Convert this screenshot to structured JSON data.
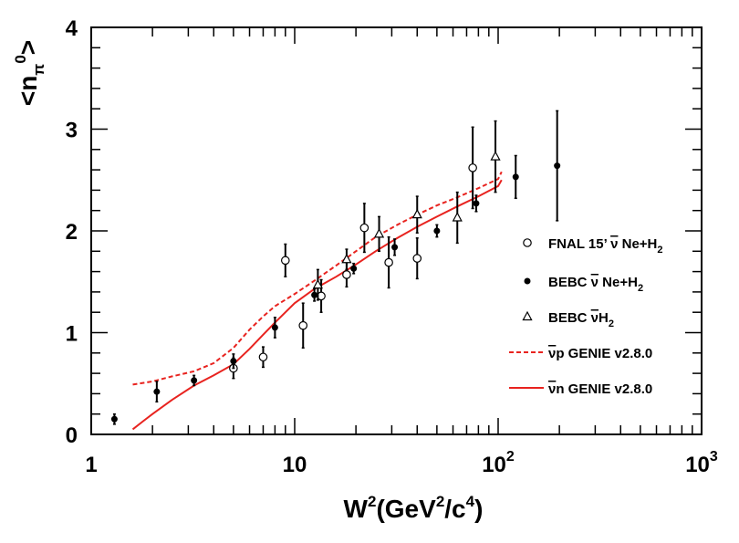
{
  "chart_data": {
    "type": "scatter",
    "x_scale": "log",
    "xlim": [
      1,
      1000
    ],
    "ylim": [
      0,
      4
    ],
    "x_tick_labels": [
      {
        "value": 1,
        "base": "1",
        "exp": ""
      },
      {
        "value": 10,
        "base": "10",
        "exp": ""
      },
      {
        "value": 100,
        "base": "10",
        "exp": "2"
      },
      {
        "value": 1000,
        "base": "10",
        "exp": "3"
      }
    ],
    "y_ticks": [
      0,
      1,
      2,
      3,
      4
    ],
    "y_tick_labels": [
      "0",
      "1",
      "2",
      "3",
      "4"
    ],
    "xlabel": {
      "a": "W",
      "a_sup": "2",
      "b": "(GeV",
      "b_sup": "2",
      "c": "/c",
      "c_sup": "4",
      "d": ")"
    },
    "ylabel": {
      "open": "<n",
      "sub": "π",
      "sup": "0",
      "close": ">"
    },
    "legend_position": "right",
    "series": [
      {
        "name": "FNAL 15’ ν̅ Ne+H₂",
        "legend": {
          "a": "FNAL 15’ ",
          "bar": "ν",
          "b": " Ne+H",
          "sub": "2"
        },
        "marker": "open-circle",
        "points": [
          {
            "x": 5.0,
            "y": 0.65,
            "err": 0.1
          },
          {
            "x": 7.0,
            "y": 0.76,
            "err": 0.1
          },
          {
            "x": 9.0,
            "y": 1.71,
            "err": 0.16
          },
          {
            "x": 11.0,
            "y": 1.07,
            "err": 0.22
          },
          {
            "x": 13.5,
            "y": 1.36,
            "err": 0.16
          },
          {
            "x": 18.0,
            "y": 1.57,
            "err": 0.12
          },
          {
            "x": 22.0,
            "y": 2.03,
            "err": 0.24
          },
          {
            "x": 29.0,
            "y": 1.69,
            "err": 0.25
          },
          {
            "x": 40.0,
            "y": 1.73,
            "err": 0.2
          },
          {
            "x": 75.0,
            "y": 2.62,
            "err": 0.4
          }
        ]
      },
      {
        "name": "BEBC ν̅ Ne+H₂",
        "legend": {
          "a": "BEBC ",
          "bar": "ν",
          "b": " Ne+H",
          "sub": "2"
        },
        "marker": "filled-circle",
        "points": [
          {
            "x": 1.3,
            "y": 0.15,
            "err": 0.05
          },
          {
            "x": 2.1,
            "y": 0.42,
            "err": 0.1
          },
          {
            "x": 3.2,
            "y": 0.53,
            "err": 0.05
          },
          {
            "x": 5.0,
            "y": 0.72,
            "err": 0.07
          },
          {
            "x": 8.0,
            "y": 1.05,
            "err": 0.1
          },
          {
            "x": 12.5,
            "y": 1.37,
            "err": 0.06
          },
          {
            "x": 19.5,
            "y": 1.63,
            "err": 0.05
          },
          {
            "x": 31.0,
            "y": 1.84,
            "err": 0.08
          },
          {
            "x": 50.0,
            "y": 2.0,
            "err": 0.06
          },
          {
            "x": 78.0,
            "y": 2.27,
            "err": 0.08
          },
          {
            "x": 122.0,
            "y": 2.53,
            "err": 0.21
          },
          {
            "x": 195.0,
            "y": 2.64,
            "err": 0.54
          }
        ]
      },
      {
        "name": "BEBC ν̅H₂",
        "legend": {
          "a": "BEBC ",
          "bar": "ν",
          "b": "H",
          "sub": "2"
        },
        "marker": "open-triangle",
        "points": [
          {
            "x": 13.0,
            "y": 1.47,
            "err": 0.15
          },
          {
            "x": 18.0,
            "y": 1.72,
            "err": 0.1
          },
          {
            "x": 26.0,
            "y": 1.97,
            "err": 0.17
          },
          {
            "x": 40.0,
            "y": 2.16,
            "err": 0.18
          },
          {
            "x": 63.0,
            "y": 2.13,
            "err": 0.25
          },
          {
            "x": 97.0,
            "y": 2.73,
            "err": 0.35
          }
        ]
      },
      {
        "name": "ν̅p GENIE v2.8.0",
        "legend": {
          "a": "",
          "bar": "ν",
          "b": "p GENIE v2.8.0",
          "sub": ""
        },
        "line": "dashed",
        "color": "#e8231f",
        "points": [
          {
            "x": 1.6,
            "y": 0.49
          },
          {
            "x": 2.0,
            "y": 0.52
          },
          {
            "x": 2.5,
            "y": 0.57
          },
          {
            "x": 3.2,
            "y": 0.62
          },
          {
            "x": 4.0,
            "y": 0.7
          },
          {
            "x": 5.0,
            "y": 0.85
          },
          {
            "x": 6.0,
            "y": 1.03
          },
          {
            "x": 7.0,
            "y": 1.16
          },
          {
            "x": 8.0,
            "y": 1.26
          },
          {
            "x": 10.0,
            "y": 1.38
          },
          {
            "x": 12.5,
            "y": 1.51
          },
          {
            "x": 16.0,
            "y": 1.66
          },
          {
            "x": 20.0,
            "y": 1.8
          },
          {
            "x": 25.0,
            "y": 1.94
          },
          {
            "x": 32.0,
            "y": 2.06
          },
          {
            "x": 40.0,
            "y": 2.16
          },
          {
            "x": 50.0,
            "y": 2.25
          },
          {
            "x": 63.0,
            "y": 2.33
          },
          {
            "x": 80.0,
            "y": 2.42
          },
          {
            "x": 100.0,
            "y": 2.51
          },
          {
            "x": 104.0,
            "y": 2.58
          }
        ]
      },
      {
        "name": "ν̅n GENIE v2.8.0",
        "legend": {
          "a": "",
          "bar": "ν",
          "b": "n GENIE v2.8.0",
          "sub": ""
        },
        "line": "solid",
        "color": "#e8231f",
        "points": [
          {
            "x": 1.6,
            "y": 0.05
          },
          {
            "x": 1.8,
            "y": 0.13
          },
          {
            "x": 2.0,
            "y": 0.2
          },
          {
            "x": 2.5,
            "y": 0.34
          },
          {
            "x": 3.2,
            "y": 0.48
          },
          {
            "x": 4.0,
            "y": 0.58
          },
          {
            "x": 5.0,
            "y": 0.69
          },
          {
            "x": 6.0,
            "y": 0.84
          },
          {
            "x": 7.0,
            "y": 0.98
          },
          {
            "x": 8.0,
            "y": 1.1
          },
          {
            "x": 10.0,
            "y": 1.29
          },
          {
            "x": 12.5,
            "y": 1.43
          },
          {
            "x": 16.0,
            "y": 1.55
          },
          {
            "x": 20.0,
            "y": 1.67
          },
          {
            "x": 25.0,
            "y": 1.8
          },
          {
            "x": 32.0,
            "y": 1.93
          },
          {
            "x": 40.0,
            "y": 2.04
          },
          {
            "x": 50.0,
            "y": 2.14
          },
          {
            "x": 63.0,
            "y": 2.24
          },
          {
            "x": 80.0,
            "y": 2.34
          },
          {
            "x": 100.0,
            "y": 2.44
          },
          {
            "x": 104.0,
            "y": 2.5
          }
        ]
      }
    ]
  }
}
